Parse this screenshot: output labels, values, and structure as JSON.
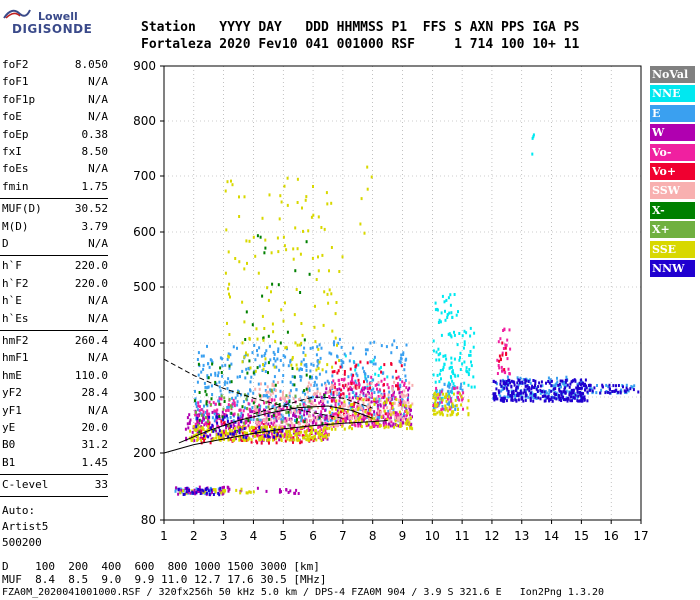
{
  "logo": {
    "top": "Lowell",
    "bottom": "DIGISONDE"
  },
  "header": {
    "row1": "Station   YYYY DAY   DDD HHMMSS P1  FFS S AXN PPS IGA PS",
    "row2": "Fortaleza 2020 Fev10 041 001000 RSF     1 714 100 10+ 11"
  },
  "params_group1": [
    {
      "k": "foF2",
      "v": "8.050"
    },
    {
      "k": "foF1",
      "v": "N/A"
    },
    {
      "k": "foF1p",
      "v": "N/A"
    },
    {
      "k": "foE",
      "v": "N/A"
    },
    {
      "k": "foEp",
      "v": "0.38"
    },
    {
      "k": "fxI",
      "v": "8.50"
    },
    {
      "k": "foEs",
      "v": "N/A"
    },
    {
      "k": "fmin",
      "v": "1.75"
    }
  ],
  "params_group2": [
    {
      "k": "MUF(D)",
      "v": "30.52"
    },
    {
      "k": "M(D)",
      "v": "3.79"
    },
    {
      "k": "D",
      "v": "N/A"
    }
  ],
  "params_group3": [
    {
      "k": "h`F",
      "v": "220.0"
    },
    {
      "k": "h`F2",
      "v": "220.0"
    },
    {
      "k": "h`E",
      "v": "N/A"
    },
    {
      "k": "h`Es",
      "v": "N/A"
    }
  ],
  "params_group4": [
    {
      "k": "hmF2",
      "v": "260.4"
    },
    {
      "k": "hmF1",
      "v": "N/A"
    },
    {
      "k": "hmE",
      "v": "110.0"
    },
    {
      "k": "yF2",
      "v": "28.4"
    },
    {
      "k": "yF1",
      "v": "N/A"
    },
    {
      "k": "yE",
      "v": "20.0"
    },
    {
      "k": "B0",
      "v": "31.2"
    },
    {
      "k": "B1",
      "v": "1.45"
    }
  ],
  "clevel": {
    "k": "C-level",
    "v": "33"
  },
  "auto": [
    "Auto:",
    "Artist5",
    "500200"
  ],
  "legend": [
    {
      "label": "NoVal",
      "color": "#808080"
    },
    {
      "label": "NNE",
      "color": "#00e8f0"
    },
    {
      "label": "E",
      "color": "#3aa0f0"
    },
    {
      "label": "W",
      "color": "#b000b0"
    },
    {
      "label": "Vo-",
      "color": "#f020a0"
    },
    {
      "label": "Vo+",
      "color": "#f00030"
    },
    {
      "label": "SSW",
      "color": "#f8b0b0"
    },
    {
      "label": "X-",
      "color": "#008000"
    },
    {
      "label": "X+",
      "color": "#70b040"
    },
    {
      "label": "SSE",
      "color": "#d8d800"
    },
    {
      "label": "NNW",
      "color": "#2000d0"
    }
  ],
  "bottom": {
    "d_row": "D    100  200  400  600  800 1000 1500 3000 [km]",
    "muf_row": "MUF  8.4  8.5  9.0  9.9 11.0 12.7 17.6 30.5 [MHz]",
    "footer": "FZA0M_2020041001000.RSF / 320fx256h 50 kHz 5.0 km / DPS-4 FZA0M 904 / 3.9 S 321.6 E   Ion2Png 1.3.20"
  },
  "chart_data": {
    "type": "scatter",
    "title": "",
    "xlabel": "",
    "ylabel": "",
    "xlim": [
      1,
      17
    ],
    "ylim": [
      80,
      900
    ],
    "x_ticks": [
      1,
      2,
      3,
      4,
      5,
      6,
      7,
      8,
      9,
      10,
      11,
      12,
      13,
      14,
      15,
      16,
      17
    ],
    "y_ticks": [
      80,
      200,
      300,
      400,
      500,
      600,
      700,
      800,
      900
    ],
    "grid": true,
    "legend_position": "right",
    "series": [
      {
        "name": "NNE",
        "color": "#00e8f0",
        "clusters": [
          {
            "x0": 10.0,
            "x1": 10.9,
            "y0": 300,
            "y1": 490,
            "n": 90
          },
          {
            "x0": 10.9,
            "x1": 11.4,
            "y0": 320,
            "y1": 430,
            "n": 30
          },
          {
            "x0": 13.3,
            "x1": 13.4,
            "y0": 740,
            "y1": 780,
            "n": 4
          },
          {
            "x0": 7.0,
            "x1": 8.5,
            "y0": 280,
            "y1": 380,
            "n": 30
          }
        ]
      },
      {
        "name": "E",
        "color": "#3aa0f0",
        "clusters": [
          {
            "x0": 2.0,
            "x1": 6.0,
            "y0": 260,
            "y1": 400,
            "n": 300
          },
          {
            "x0": 6.0,
            "x1": 9.2,
            "y0": 260,
            "y1": 410,
            "n": 200
          },
          {
            "x0": 12.0,
            "x1": 15.0,
            "y0": 300,
            "y1": 340,
            "n": 150
          },
          {
            "x0": 15.0,
            "x1": 16.8,
            "y0": 310,
            "y1": 325,
            "n": 30
          },
          {
            "x0": 1.3,
            "x1": 3.0,
            "y0": 130,
            "y1": 140,
            "n": 40
          },
          {
            "x0": 10.0,
            "x1": 11.0,
            "y0": 280,
            "y1": 330,
            "n": 50
          }
        ]
      },
      {
        "name": "W",
        "color": "#b000b0",
        "clusters": [
          {
            "x0": 1.7,
            "x1": 6.5,
            "y0": 225,
            "y1": 280,
            "n": 200
          },
          {
            "x0": 6.0,
            "x1": 9.3,
            "y0": 250,
            "y1": 320,
            "n": 150
          },
          {
            "x0": 1.3,
            "x1": 3.2,
            "y0": 128,
            "y1": 142,
            "n": 40
          },
          {
            "x0": 3.5,
            "x1": 5.5,
            "y0": 130,
            "y1": 140,
            "n": 15
          }
        ]
      },
      {
        "name": "Vo-",
        "color": "#f020a0",
        "clusters": [
          {
            "x0": 2.0,
            "x1": 6.5,
            "y0": 230,
            "y1": 300,
            "n": 200
          },
          {
            "x0": 6.5,
            "x1": 9.2,
            "y0": 250,
            "y1": 340,
            "n": 150
          },
          {
            "x0": 12.1,
            "x1": 12.6,
            "y0": 340,
            "y1": 430,
            "n": 25
          },
          {
            "x0": 10.0,
            "x1": 11.0,
            "y0": 280,
            "y1": 320,
            "n": 30
          }
        ]
      },
      {
        "name": "Vo+",
        "color": "#f00030",
        "clusters": [
          {
            "x0": 2.0,
            "x1": 6.0,
            "y0": 220,
            "y1": 260,
            "n": 80
          },
          {
            "x0": 6.5,
            "x1": 9.0,
            "y0": 260,
            "y1": 370,
            "n": 80
          },
          {
            "x0": 12.2,
            "x1": 12.5,
            "y0": 350,
            "y1": 420,
            "n": 10
          }
        ]
      },
      {
        "name": "SSW",
        "color": "#f8b0b0",
        "clusters": [
          {
            "x0": 4.0,
            "x1": 7.0,
            "y0": 250,
            "y1": 330,
            "n": 150
          },
          {
            "x0": 7.0,
            "x1": 9.3,
            "y0": 260,
            "y1": 330,
            "n": 100
          }
        ]
      },
      {
        "name": "X-",
        "color": "#008000",
        "clusters": [
          {
            "x0": 2.0,
            "x1": 6.5,
            "y0": 240,
            "y1": 380,
            "n": 60
          },
          {
            "x0": 3.5,
            "x1": 6.0,
            "y0": 400,
            "y1": 600,
            "n": 20
          }
        ]
      },
      {
        "name": "X+",
        "color": "#70b040",
        "clusters": [
          {
            "x0": 2.0,
            "x1": 6.0,
            "y0": 250,
            "y1": 320,
            "n": 40
          }
        ]
      },
      {
        "name": "SSE",
        "color": "#d8d800",
        "clusters": [
          {
            "x0": 1.8,
            "x1": 6.5,
            "y0": 225,
            "y1": 250,
            "n": 220
          },
          {
            "x0": 3.0,
            "x1": 7.0,
            "y0": 350,
            "y1": 700,
            "n": 140
          },
          {
            "x0": 6.5,
            "x1": 9.3,
            "y0": 245,
            "y1": 300,
            "n": 100
          },
          {
            "x0": 10.0,
            "x1": 11.2,
            "y0": 270,
            "y1": 310,
            "n": 60
          },
          {
            "x0": 1.5,
            "x1": 4.0,
            "y0": 130,
            "y1": 138,
            "n": 25
          },
          {
            "x0": 7.5,
            "x1": 8.0,
            "y0": 600,
            "y1": 720,
            "n": 6
          }
        ]
      },
      {
        "name": "NNW",
        "color": "#2000d0",
        "clusters": [
          {
            "x0": 12.0,
            "x1": 15.2,
            "y0": 295,
            "y1": 335,
            "n": 260
          },
          {
            "x0": 15.0,
            "x1": 16.9,
            "y0": 310,
            "y1": 325,
            "n": 40
          },
          {
            "x0": 2.0,
            "x1": 5.0,
            "y0": 230,
            "y1": 270,
            "n": 50
          },
          {
            "x0": 1.3,
            "x1": 3.0,
            "y0": 128,
            "y1": 140,
            "n": 25
          }
        ]
      }
    ],
    "profile_lines": [
      {
        "style": "solid",
        "points": [
          [
            1.0,
            200
          ],
          [
            2.0,
            215
          ],
          [
            3.0,
            225
          ],
          [
            4.0,
            235
          ],
          [
            5.0,
            243
          ],
          [
            6.0,
            249
          ],
          [
            7.0,
            253
          ],
          [
            8.0,
            256
          ],
          [
            8.5,
            258
          ]
        ]
      },
      {
        "style": "solid",
        "points": [
          [
            1.5,
            218
          ],
          [
            2.5,
            240
          ],
          [
            3.5,
            258
          ],
          [
            4.5,
            271
          ],
          [
            5.5,
            281
          ],
          [
            6.5,
            284
          ],
          [
            7.3,
            276
          ],
          [
            8.0,
            262
          ]
        ]
      },
      {
        "style": "dashed",
        "points": [
          [
            1.0,
            370
          ],
          [
            2.0,
            340
          ],
          [
            3.0,
            316
          ],
          [
            4.0,
            298
          ],
          [
            5.0,
            284
          ],
          [
            6.0,
            272
          ],
          [
            7.0,
            262
          ]
        ]
      },
      {
        "style": "dashed",
        "points": [
          [
            4.0,
            270
          ],
          [
            5.0,
            285
          ],
          [
            6.0,
            300
          ],
          [
            7.0,
            298
          ],
          [
            8.0,
            280
          ]
        ]
      }
    ]
  }
}
